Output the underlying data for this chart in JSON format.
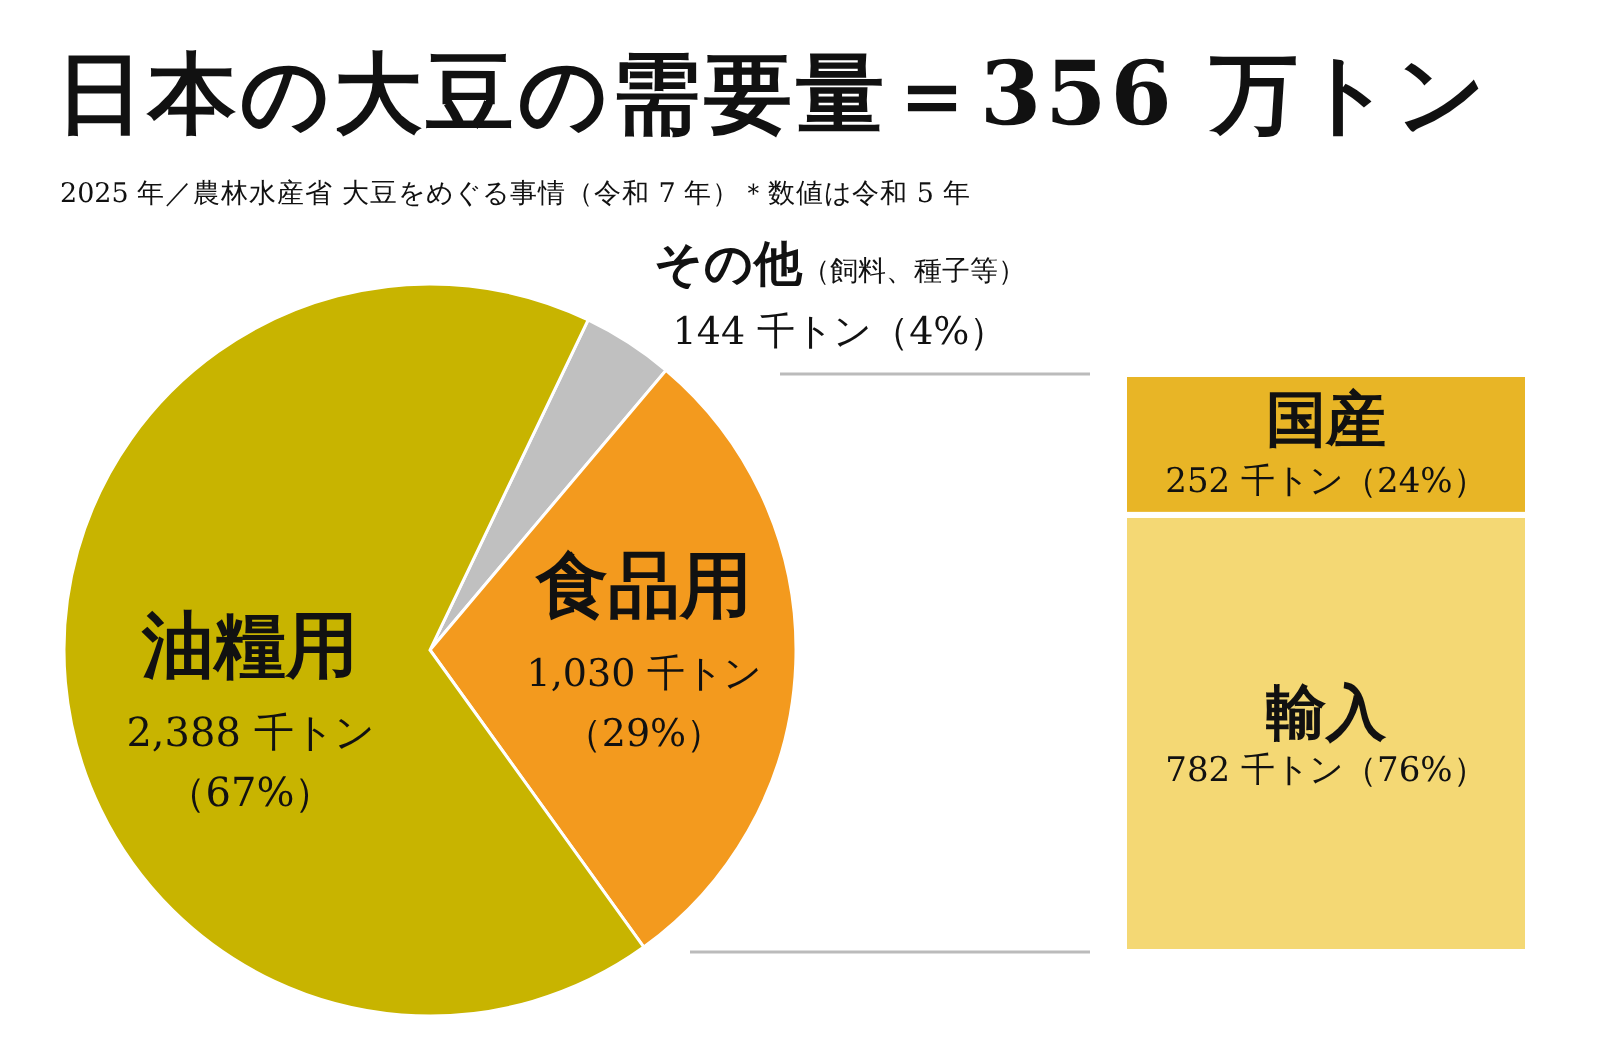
{
  "chart_data": [
    {
      "type": "pie",
      "title": "日本の大豆の需要量＝356 万トン",
      "subtitle": "2025 年／農林水産省 大豆をめぐる事情（令和 7 年）＊数値は令和 5 年",
      "categories": [
        "その他（飼料、種子等）",
        "食品用",
        "油糧用"
      ],
      "values": [
        144,
        1030,
        2388
      ],
      "colors": [
        "#c0c0c0",
        "#f39a1e",
        "#c8b400"
      ],
      "value_labels": [
        "144 千トン（4%）",
        "1,030 千トン（29%）",
        "2,388 千トン（67%）"
      ]
    },
    {
      "type": "bar",
      "stacked": true,
      "categories": [
        null
      ],
      "series": [
        {
          "name": "輸入",
          "color": "#f4d874",
          "values": [
            782
          ],
          "value_labels": [
            "782 千トン（76%）"
          ]
        },
        {
          "name": "国産",
          "color": "#e8b526",
          "values": [
            252
          ],
          "value_labels": [
            "252 千トン（24%）"
          ]
        }
      ]
    }
  ]
}
